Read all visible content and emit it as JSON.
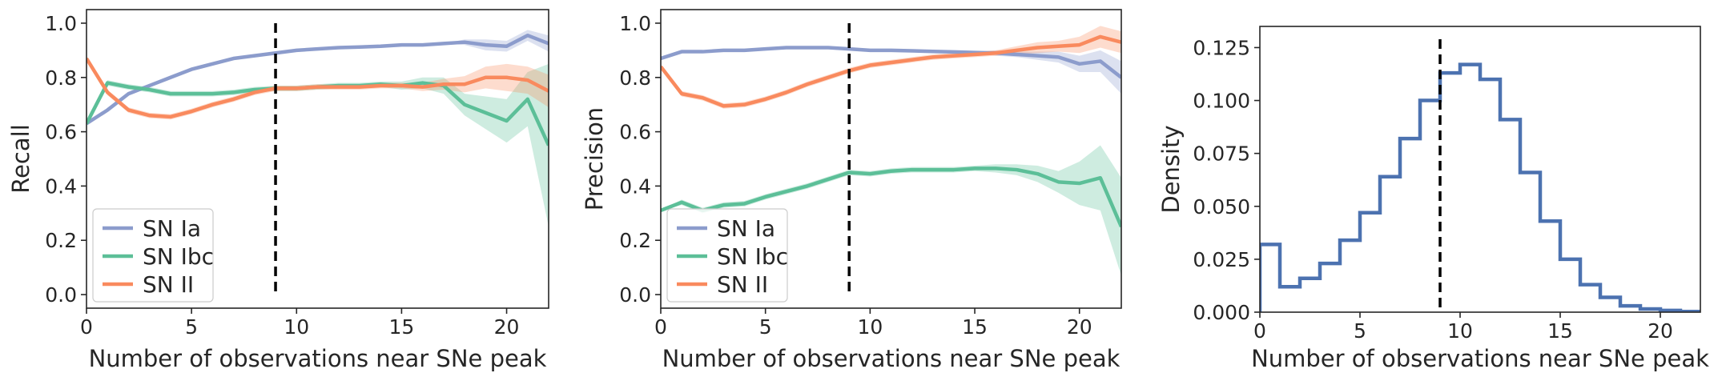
{
  "colors": {
    "sn_ia": "#8c9ccc",
    "sn_ibc": "#5cbf98",
    "sn_ii": "#f98a5e",
    "histogram": "#4c72b0",
    "marker": "#000000"
  },
  "chart_data": [
    {
      "type": "line",
      "xlabel": "Number of observations near SNe peak",
      "ylabel": "Recall",
      "xlim": [
        0,
        22
      ],
      "ylim": [
        -0.05,
        1.05
      ],
      "xticks": [
        0,
        5,
        10,
        15,
        20
      ],
      "yticks": [
        0.0,
        0.2,
        0.4,
        0.6,
        0.8,
        1.0
      ],
      "vline_x": 9,
      "legend_position": "lower-left",
      "x": [
        0,
        1,
        2,
        3,
        4,
        5,
        6,
        7,
        8,
        9,
        10,
        11,
        12,
        13,
        14,
        15,
        16,
        17,
        18,
        19,
        20,
        21,
        22
      ],
      "series": [
        {
          "name": "SN Ia",
          "color_key": "sn_ia",
          "values": [
            0.63,
            0.68,
            0.74,
            0.77,
            0.8,
            0.83,
            0.85,
            0.87,
            0.88,
            0.89,
            0.9,
            0.905,
            0.91,
            0.912,
            0.915,
            0.92,
            0.92,
            0.925,
            0.93,
            0.92,
            0.915,
            0.955,
            0.925
          ],
          "band": [
            0,
            0,
            0,
            0,
            0,
            0,
            0,
            0,
            0,
            0,
            0,
            0,
            0,
            0,
            0,
            0,
            0,
            0,
            0.01,
            0.02,
            0.02,
            0.02,
            0.03
          ]
        },
        {
          "name": "SN Ibc",
          "color_key": "sn_ibc",
          "values": [
            0.63,
            0.78,
            0.765,
            0.755,
            0.74,
            0.74,
            0.74,
            0.745,
            0.755,
            0.76,
            0.76,
            0.765,
            0.77,
            0.77,
            0.775,
            0.77,
            0.78,
            0.77,
            0.7,
            0.67,
            0.64,
            0.72,
            0.55
          ],
          "band": [
            0,
            0.01,
            0.01,
            0.01,
            0.01,
            0.01,
            0.01,
            0.01,
            0.01,
            0.01,
            0.01,
            0.01,
            0.01,
            0.01,
            0.01,
            0.015,
            0.02,
            0.03,
            0.04,
            0.06,
            0.08,
            0.1,
            0.3
          ]
        },
        {
          "name": "SN II",
          "color_key": "sn_ii",
          "values": [
            0.87,
            0.745,
            0.68,
            0.66,
            0.655,
            0.675,
            0.7,
            0.72,
            0.745,
            0.76,
            0.76,
            0.765,
            0.765,
            0.765,
            0.77,
            0.77,
            0.765,
            0.775,
            0.775,
            0.8,
            0.8,
            0.79,
            0.75
          ],
          "band": [
            0,
            0.01,
            0.01,
            0.01,
            0.01,
            0.01,
            0.01,
            0.01,
            0.01,
            0.01,
            0.01,
            0.01,
            0.01,
            0.01,
            0.01,
            0.01,
            0.015,
            0.02,
            0.03,
            0.04,
            0.05,
            0.05,
            0.06
          ]
        }
      ]
    },
    {
      "type": "line",
      "xlabel": "Number of observations near SNe peak",
      "ylabel": "Precision",
      "xlim": [
        0,
        22
      ],
      "ylim": [
        -0.05,
        1.05
      ],
      "xticks": [
        0,
        5,
        10,
        15,
        20
      ],
      "yticks": [
        0.0,
        0.2,
        0.4,
        0.6,
        0.8,
        1.0
      ],
      "vline_x": 9,
      "legend_position": "lower-left",
      "x": [
        0,
        1,
        2,
        3,
        4,
        5,
        6,
        7,
        8,
        9,
        10,
        11,
        12,
        13,
        14,
        15,
        16,
        17,
        18,
        19,
        20,
        21,
        22
      ],
      "series": [
        {
          "name": "SN Ia",
          "color_key": "sn_ia",
          "values": [
            0.87,
            0.895,
            0.895,
            0.9,
            0.9,
            0.905,
            0.91,
            0.91,
            0.91,
            0.905,
            0.9,
            0.9,
            0.898,
            0.896,
            0.894,
            0.892,
            0.89,
            0.885,
            0.88,
            0.875,
            0.85,
            0.86,
            0.8
          ],
          "band": [
            0,
            0,
            0,
            0,
            0,
            0,
            0,
            0,
            0,
            0,
            0,
            0,
            0,
            0,
            0,
            0,
            0.01,
            0.01,
            0.015,
            0.02,
            0.03,
            0.04,
            0.06
          ]
        },
        {
          "name": "SN Ibc",
          "color_key": "sn_ibc",
          "values": [
            0.31,
            0.34,
            0.31,
            0.33,
            0.335,
            0.36,
            0.38,
            0.4,
            0.425,
            0.45,
            0.445,
            0.455,
            0.46,
            0.46,
            0.46,
            0.465,
            0.465,
            0.46,
            0.445,
            0.415,
            0.41,
            0.43,
            0.25
          ],
          "band": [
            0,
            0.01,
            0.01,
            0.01,
            0.01,
            0.01,
            0.01,
            0.01,
            0.01,
            0.01,
            0.01,
            0.01,
            0.01,
            0.01,
            0.01,
            0.01,
            0.015,
            0.02,
            0.03,
            0.04,
            0.08,
            0.12,
            0.18
          ]
        },
        {
          "name": "SN II",
          "color_key": "sn_ii",
          "values": [
            0.84,
            0.74,
            0.725,
            0.695,
            0.7,
            0.72,
            0.745,
            0.775,
            0.8,
            0.825,
            0.845,
            0.855,
            0.865,
            0.875,
            0.88,
            0.885,
            0.89,
            0.9,
            0.91,
            0.915,
            0.92,
            0.95,
            0.93
          ],
          "band": [
            0,
            0.01,
            0.01,
            0.01,
            0.01,
            0.01,
            0.01,
            0.01,
            0.01,
            0.01,
            0.01,
            0.01,
            0.01,
            0.01,
            0.01,
            0.01,
            0.01,
            0.015,
            0.02,
            0.02,
            0.03,
            0.04,
            0.04
          ]
        }
      ]
    },
    {
      "type": "histogram",
      "xlabel": "Number of observations near SNe peak",
      "ylabel": "Density",
      "xlim": [
        0,
        22
      ],
      "ylim": [
        0,
        0.135
      ],
      "xticks": [
        0,
        5,
        10,
        15,
        20
      ],
      "yticks": [
        0.0,
        0.025,
        0.05,
        0.075,
        0.1,
        0.125
      ],
      "vline_x": 9,
      "bin_edges": [
        0,
        1,
        2,
        3,
        4,
        5,
        6,
        7,
        8,
        9,
        10,
        11,
        12,
        13,
        14,
        15,
        16,
        17,
        18,
        19,
        20,
        21,
        22
      ],
      "values": [
        0.032,
        0.012,
        0.016,
        0.023,
        0.034,
        0.047,
        0.064,
        0.082,
        0.1,
        0.113,
        0.117,
        0.11,
        0.091,
        0.066,
        0.043,
        0.025,
        0.013,
        0.007,
        0.003,
        0.0015,
        0.0008,
        0.0003
      ]
    }
  ]
}
